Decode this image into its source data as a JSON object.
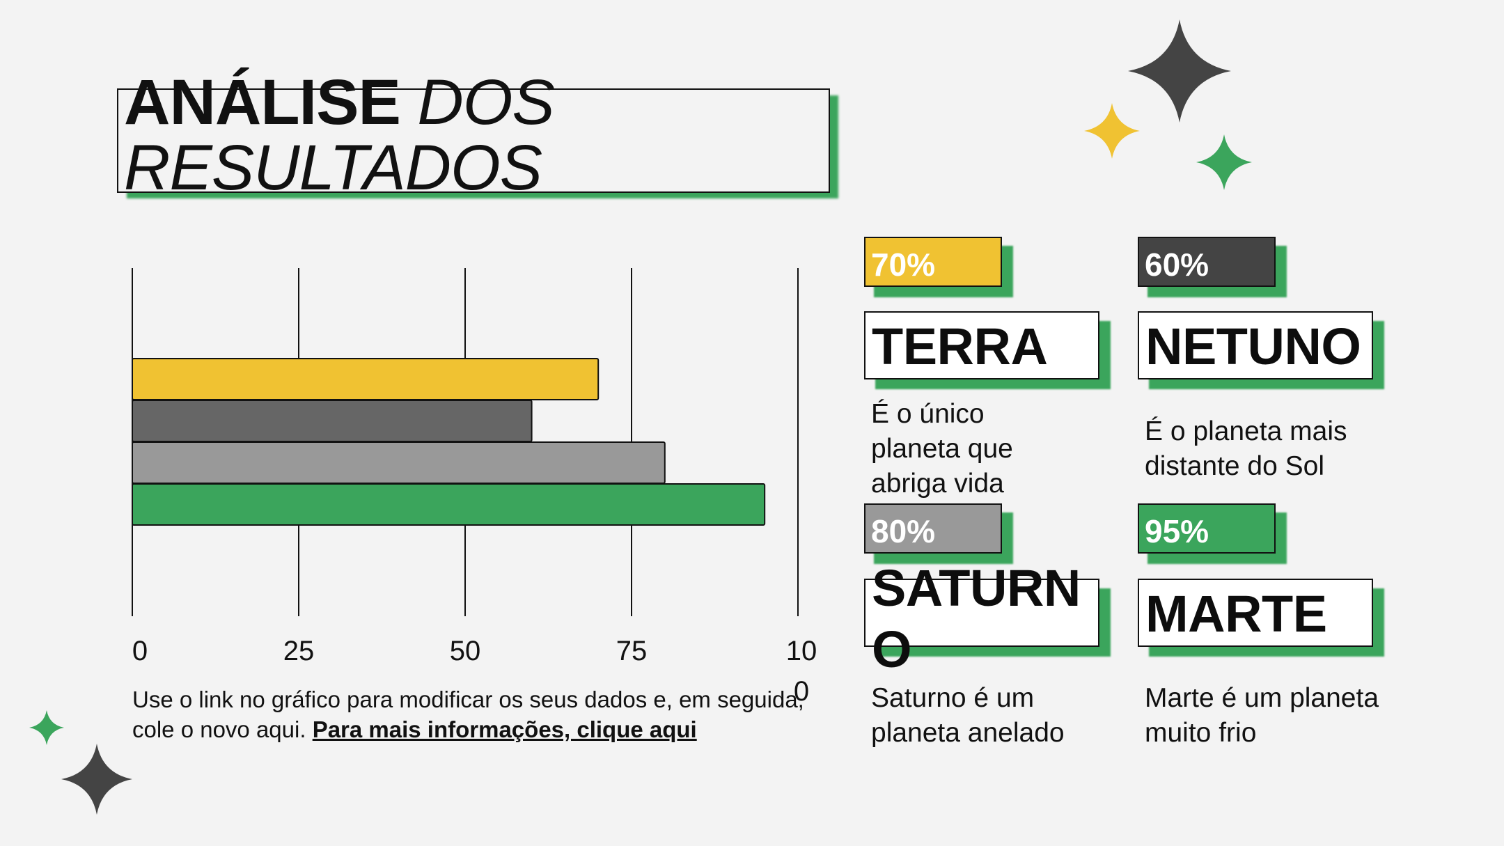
{
  "title": {
    "bold": "ANÁLISE",
    "italic": "DOS RESULTADOS",
    "italic_line1": "DOS",
    "italic_line2": "RESULTADOS"
  },
  "chart_data": {
    "type": "bar",
    "orientation": "horizontal",
    "categories": [
      "Terra",
      "Netuno",
      "Saturno",
      "Marte"
    ],
    "values": [
      70,
      60,
      80,
      95
    ],
    "colors": [
      "#f0c232",
      "#666666",
      "#999999",
      "#3ba55c"
    ],
    "xlim": [
      0,
      100
    ],
    "xticks": [
      "0",
      "25",
      "50",
      "75",
      "100"
    ],
    "grid": true,
    "title": "",
    "xlabel": "",
    "ylabel": ""
  },
  "caption": {
    "text": "Use o link no gráfico para modificar os seus dados e, em seguida, cole o novo aqui. ",
    "link": "Para mais informações, clique aqui"
  },
  "cards": [
    {
      "pct": "70%",
      "pct_color": "#f0c232",
      "name": "TERRA",
      "desc": "É o único planeta que abriga vida"
    },
    {
      "pct": "60%",
      "pct_color": "#444444",
      "name": "NETUNO",
      "desc": "É o planeta mais distante do Sol"
    },
    {
      "pct": "80%",
      "pct_color": "#999999",
      "name": "SATURNO",
      "desc": "Saturno é um planeta anelado"
    },
    {
      "pct": "95%",
      "pct_color": "#3ba55c",
      "name": "MARTE",
      "desc": "Marte é um planeta muito frio"
    }
  ],
  "colors": {
    "accent_green": "#3ba55c",
    "accent_yellow": "#f0c232",
    "dark": "#444444"
  },
  "decorations": [
    "sparkle-icon",
    "sparkle-icon",
    "sparkle-icon",
    "sparkle-icon",
    "sparkle-icon"
  ]
}
